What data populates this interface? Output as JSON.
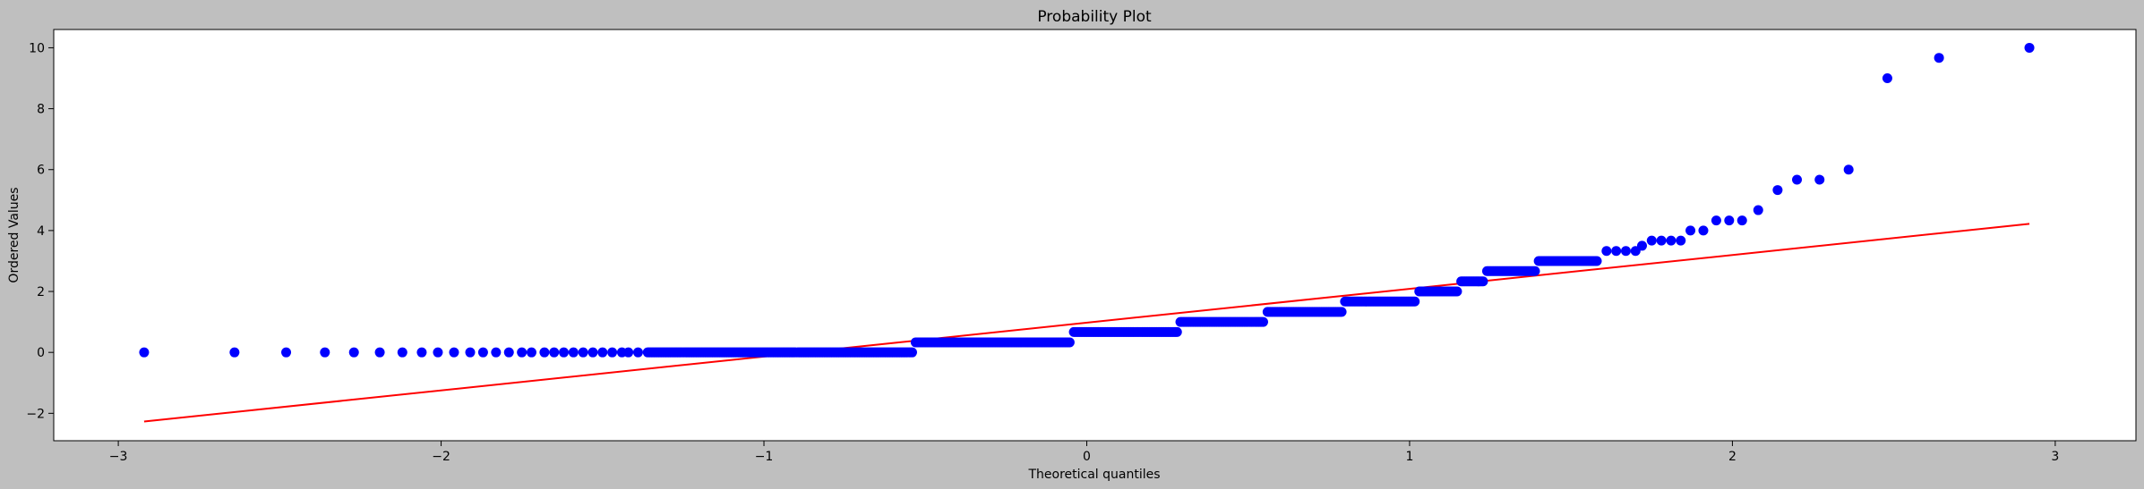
{
  "chart_data": {
    "type": "scatter",
    "title": "Probability Plot",
    "xlabel": "Theoretical quantiles",
    "ylabel": "Ordered Values",
    "xlim": [
      -3.2,
      3.25
    ],
    "ylim": [
      -2.9,
      10.6
    ],
    "xticks": [
      -3,
      -2,
      -1,
      0,
      1,
      2,
      3
    ],
    "xtick_labels": [
      "−3",
      "−2",
      "−1",
      "0",
      "1",
      "2",
      "3"
    ],
    "yticks": [
      -2,
      0,
      2,
      4,
      6,
      8,
      10
    ],
    "ytick_labels": [
      "−2",
      "0",
      "2",
      "4",
      "6",
      "8",
      "10"
    ],
    "grid": false,
    "legend": "none",
    "series": [
      {
        "kind": "points",
        "color": "#0000ff",
        "runs": [
          {
            "y": 0.0,
            "x": [
              -2.92,
              -2.64,
              -2.48,
              -2.36,
              -2.27,
              -2.19,
              -2.12,
              -2.06,
              -2.01,
              -1.96,
              -1.91,
              -1.87,
              -1.83,
              -1.79,
              -1.75,
              -1.72,
              -1.68,
              -1.65,
              -1.62,
              -1.59,
              -1.56,
              -1.53,
              -1.5,
              -1.47,
              -1.44,
              -1.42,
              -1.39
            ],
            "x_from": -1.36,
            "x_to": -0.54
          },
          {
            "y": 0.33,
            "x_from": -0.53,
            "x_to": -0.05
          },
          {
            "y": 0.67,
            "x_from": -0.04,
            "x_to": 0.28
          },
          {
            "y": 1.0,
            "x_from": 0.29,
            "x_to": 0.55
          },
          {
            "y": 1.33,
            "x_from": 0.56,
            "x_to": 0.79
          },
          {
            "y": 1.67,
            "x_from": 0.8,
            "x_to": 1.02
          },
          {
            "y": 2.0,
            "x_from": 1.03,
            "x_to": 1.15
          },
          {
            "y": 2.33,
            "x_from": 1.16,
            "x_to": 1.23
          },
          {
            "y": 2.67,
            "x_from": 1.24,
            "x_to": 1.39
          },
          {
            "y": 3.0,
            "x_from": 1.4,
            "x_to": 1.58
          }
        ],
        "points": [
          [
            1.61,
            3.33
          ],
          [
            1.64,
            3.33
          ],
          [
            1.67,
            3.33
          ],
          [
            1.7,
            3.33
          ],
          [
            1.72,
            3.5
          ],
          [
            1.75,
            3.67
          ],
          [
            1.78,
            3.67
          ],
          [
            1.81,
            3.67
          ],
          [
            1.84,
            3.67
          ],
          [
            1.87,
            4.0
          ],
          [
            1.91,
            4.0
          ],
          [
            1.95,
            4.33
          ],
          [
            1.99,
            4.33
          ],
          [
            2.03,
            4.33
          ],
          [
            2.08,
            4.67
          ],
          [
            2.14,
            5.33
          ],
          [
            2.2,
            5.67
          ],
          [
            2.27,
            5.67
          ],
          [
            2.36,
            6.0
          ],
          [
            2.48,
            9.0
          ],
          [
            2.64,
            9.67
          ],
          [
            2.92,
            10.0
          ]
        ]
      },
      {
        "kind": "fit-line",
        "color": "#ff0000",
        "points": [
          [
            -2.92,
            -2.27
          ],
          [
            2.92,
            4.22
          ]
        ]
      }
    ]
  }
}
